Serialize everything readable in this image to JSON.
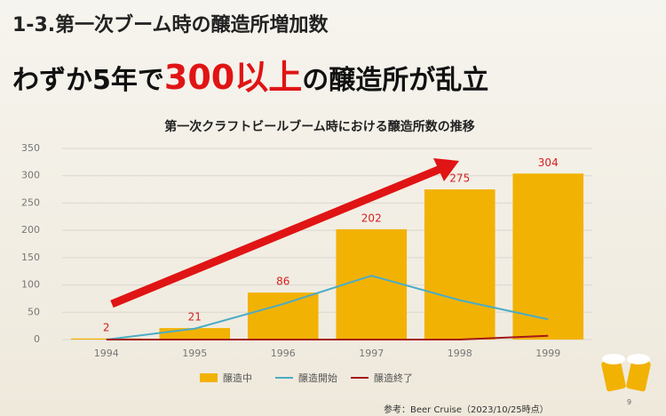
{
  "slide": {
    "heading": "1-3.第一次ブーム時の醸造所増加数",
    "headline": {
      "before": "わずか5年で",
      "emphasis": "300以上",
      "after": "の醸造所が乱立"
    },
    "source": "参考：Beer Cruise（2023/10/25時点）",
    "page_number": "9"
  },
  "chart_data": {
    "type": "bar",
    "title": "第一次クラフトビールブーム時における醸造所数の推移",
    "categories": [
      "1994",
      "1995",
      "1996",
      "1997",
      "1998",
      "1999"
    ],
    "series": [
      {
        "name": "醸造中",
        "type": "bar",
        "color": "#f2b203",
        "values": [
          2,
          21,
          86,
          202,
          275,
          304
        ]
      },
      {
        "name": "醸造開始",
        "type": "line",
        "color": "#4bacc6",
        "values": [
          0,
          20,
          65,
          117,
          72,
          37
        ]
      },
      {
        "name": "醸造終了",
        "type": "line",
        "color": "#a31818",
        "values": [
          0,
          0,
          0,
          0,
          0,
          7
        ]
      }
    ],
    "ylim": [
      0,
      350
    ],
    "yticks": [
      0,
      50,
      100,
      150,
      200,
      250,
      300,
      350
    ],
    "grid": true,
    "legend": "bottom"
  }
}
